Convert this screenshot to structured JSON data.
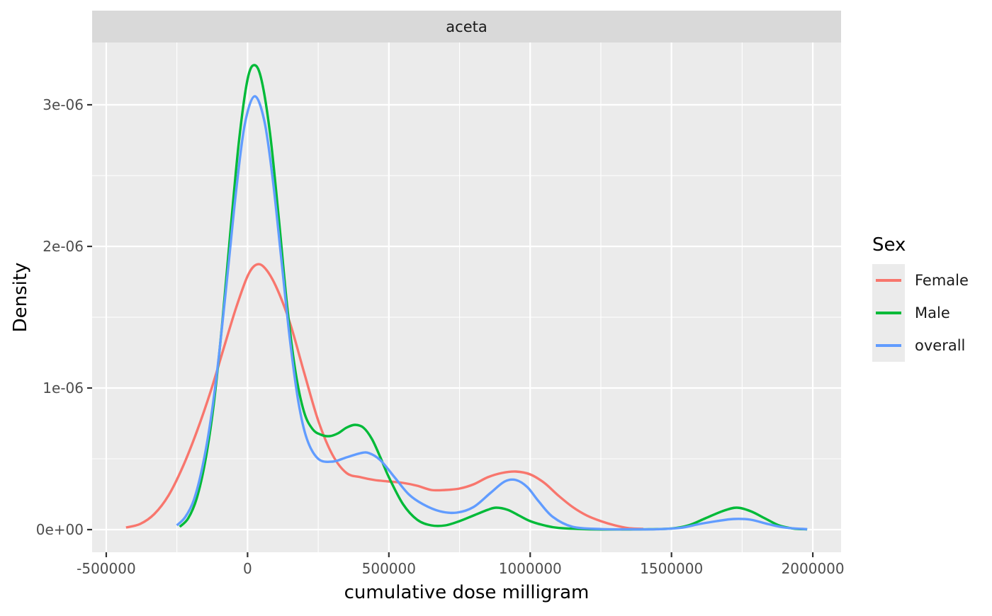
{
  "chart_data": {
    "type": "line",
    "facet_label": "aceta",
    "xlabel": "cumulative dose milligram",
    "ylabel": "Density",
    "xlim": [
      -550000,
      2100000
    ],
    "ylim": [
      -1.6e-07,
      3.44e-06
    ],
    "x_ticks": [
      {
        "value": -500000,
        "label": "-500000"
      },
      {
        "value": 0,
        "label": "0"
      },
      {
        "value": 500000,
        "label": "500000"
      },
      {
        "value": 1000000,
        "label": "1000000"
      },
      {
        "value": 1500000,
        "label": "1500000"
      },
      {
        "value": 2000000,
        "label": "2000000"
      }
    ],
    "y_ticks": [
      {
        "value": 0,
        "label": "0e+00"
      },
      {
        "value": 1e-06,
        "label": "1e-06"
      },
      {
        "value": 2e-06,
        "label": "2e-06"
      },
      {
        "value": 3e-06,
        "label": "3e-06"
      }
    ],
    "grid": true,
    "legend": {
      "title": "Sex",
      "position": "right"
    },
    "series": [
      {
        "name": "Female",
        "color": "#F8766D",
        "points": [
          [
            -430000,
            1.5e-08
          ],
          [
            -380000,
            4e-08
          ],
          [
            -330000,
            1.1e-07
          ],
          [
            -280000,
            2.4e-07
          ],
          [
            -230000,
            4.4e-07
          ],
          [
            -180000,
            6.9e-07
          ],
          [
            -130000,
            9.8e-07
          ],
          [
            -80000,
            1.31e-06
          ],
          [
            -40000,
            1.57e-06
          ],
          [
            0,
            1.79e-06
          ],
          [
            30000,
            1.87e-06
          ],
          [
            60000,
            1.85e-06
          ],
          [
            100000,
            1.72e-06
          ],
          [
            150000,
            1.46e-06
          ],
          [
            200000,
            1.11e-06
          ],
          [
            250000,
            7.7e-07
          ],
          [
            300000,
            5.3e-07
          ],
          [
            350000,
            4e-07
          ],
          [
            400000,
            3.7e-07
          ],
          [
            450000,
            3.5e-07
          ],
          [
            500000,
            3.4e-07
          ],
          [
            550000,
            3.3e-07
          ],
          [
            600000,
            3.1e-07
          ],
          [
            650000,
            2.8e-07
          ],
          [
            700000,
            2.8e-07
          ],
          [
            750000,
            2.9e-07
          ],
          [
            800000,
            3.2e-07
          ],
          [
            850000,
            3.7e-07
          ],
          [
            900000,
            4e-07
          ],
          [
            950000,
            4.1e-07
          ],
          [
            1000000,
            3.9e-07
          ],
          [
            1050000,
            3.3e-07
          ],
          [
            1100000,
            2.4e-07
          ],
          [
            1150000,
            1.6e-07
          ],
          [
            1200000,
            1e-07
          ],
          [
            1250000,
            6e-08
          ],
          [
            1300000,
            3e-08
          ],
          [
            1350000,
            1e-08
          ],
          [
            1400000,
            5e-09
          ]
        ]
      },
      {
        "name": "Male",
        "color": "#00BA38",
        "points": [
          [
            -240000,
            2e-08
          ],
          [
            -210000,
            8e-08
          ],
          [
            -180000,
            2.2e-07
          ],
          [
            -150000,
            4.8e-07
          ],
          [
            -120000,
            8.8e-07
          ],
          [
            -90000,
            1.45e-06
          ],
          [
            -60000,
            2.12e-06
          ],
          [
            -30000,
            2.75e-06
          ],
          [
            0,
            3.18e-06
          ],
          [
            25000,
            3.28e-06
          ],
          [
            50000,
            3.17e-06
          ],
          [
            80000,
            2.79e-06
          ],
          [
            110000,
            2.21e-06
          ],
          [
            140000,
            1.58e-06
          ],
          [
            170000,
            1.11e-06
          ],
          [
            200000,
            8.3e-07
          ],
          [
            230000,
            7.1e-07
          ],
          [
            260000,
            6.7e-07
          ],
          [
            290000,
            6.6e-07
          ],
          [
            320000,
            6.8e-07
          ],
          [
            350000,
            7.2e-07
          ],
          [
            380000,
            7.4e-07
          ],
          [
            410000,
            7.2e-07
          ],
          [
            440000,
            6.4e-07
          ],
          [
            470000,
            5.1e-07
          ],
          [
            500000,
            3.7e-07
          ],
          [
            550000,
            1.8e-07
          ],
          [
            600000,
            7e-08
          ],
          [
            650000,
            3e-08
          ],
          [
            700000,
            3e-08
          ],
          [
            750000,
            6e-08
          ],
          [
            800000,
            1e-07
          ],
          [
            850000,
            1.4e-07
          ],
          [
            880000,
            1.55e-07
          ],
          [
            920000,
            1.4e-07
          ],
          [
            960000,
            1e-07
          ],
          [
            1000000,
            6e-08
          ],
          [
            1050000,
            3e-08
          ],
          [
            1100000,
            1.2e-08
          ],
          [
            1200000,
            3e-09
          ],
          [
            1300000,
            1e-09
          ],
          [
            1400000,
            2e-09
          ],
          [
            1500000,
            8e-09
          ],
          [
            1560000,
            3e-08
          ],
          [
            1620000,
            8e-08
          ],
          [
            1680000,
            1.3e-07
          ],
          [
            1730000,
            1.55e-07
          ],
          [
            1780000,
            1.3e-07
          ],
          [
            1830000,
            8e-08
          ],
          [
            1880000,
            3e-08
          ],
          [
            1930000,
            8e-09
          ],
          [
            1980000,
            2e-09
          ]
        ]
      },
      {
        "name": "overall",
        "color": "#619CFF",
        "points": [
          [
            -250000,
            3e-08
          ],
          [
            -220000,
            9e-08
          ],
          [
            -190000,
            2.1e-07
          ],
          [
            -160000,
            4.4e-07
          ],
          [
            -130000,
            7.8e-07
          ],
          [
            -100000,
            1.25e-06
          ],
          [
            -70000,
            1.82e-06
          ],
          [
            -40000,
            2.4e-06
          ],
          [
            -10000,
            2.86e-06
          ],
          [
            25000,
            3.06e-06
          ],
          [
            60000,
            2.88e-06
          ],
          [
            90000,
            2.46e-06
          ],
          [
            120000,
            1.9e-06
          ],
          [
            150000,
            1.34e-06
          ],
          [
            180000,
            9e-07
          ],
          [
            210000,
            6.4e-07
          ],
          [
            250000,
            5e-07
          ],
          [
            300000,
            4.8e-07
          ],
          [
            350000,
            5.1e-07
          ],
          [
            400000,
            5.4e-07
          ],
          [
            430000,
            5.4e-07
          ],
          [
            470000,
            4.9e-07
          ],
          [
            520000,
            3.7e-07
          ],
          [
            570000,
            2.5e-07
          ],
          [
            620000,
            1.8e-07
          ],
          [
            680000,
            1.3e-07
          ],
          [
            740000,
            1.2e-07
          ],
          [
            800000,
            1.6e-07
          ],
          [
            860000,
            2.6e-07
          ],
          [
            910000,
            3.4e-07
          ],
          [
            950000,
            3.5e-07
          ],
          [
            990000,
            3e-07
          ],
          [
            1030000,
            2e-07
          ],
          [
            1080000,
            9e-08
          ],
          [
            1150000,
            2e-08
          ],
          [
            1250000,
            4e-09
          ],
          [
            1350000,
            2e-09
          ],
          [
            1450000,
            3e-09
          ],
          [
            1530000,
            1.2e-08
          ],
          [
            1600000,
            4e-08
          ],
          [
            1660000,
            6e-08
          ],
          [
            1720000,
            7.5e-08
          ],
          [
            1780000,
            7e-08
          ],
          [
            1840000,
            4e-08
          ],
          [
            1900000,
            1.5e-08
          ],
          [
            1980000,
            3e-09
          ]
        ]
      }
    ]
  }
}
